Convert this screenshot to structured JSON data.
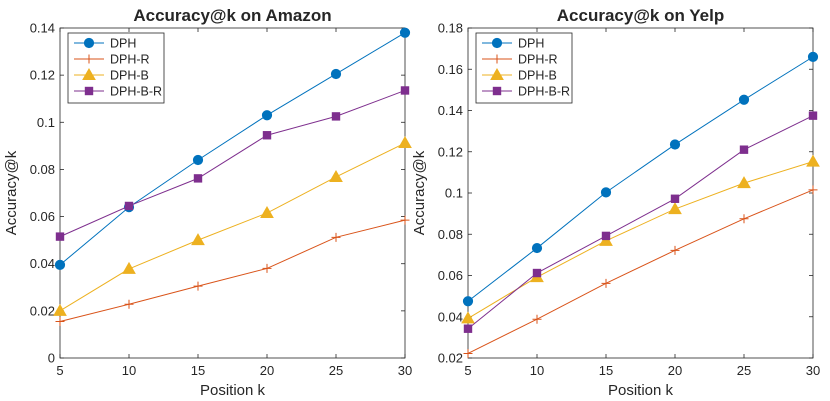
{
  "chart_data": [
    {
      "type": "line",
      "title": "Accuracy@k on Amazon",
      "xlabel": "Position k",
      "ylabel": "Accuracy@k",
      "x": [
        5,
        10,
        15,
        20,
        25,
        30
      ],
      "xlim": [
        5,
        30
      ],
      "ylim": [
        0,
        0.14
      ],
      "xticks": [
        5,
        10,
        15,
        20,
        25,
        30
      ],
      "xtick_labels": [
        "5",
        "10",
        "15",
        "20",
        "25",
        "30"
      ],
      "yticks": [
        0,
        0.02,
        0.04,
        0.06,
        0.08,
        0.1,
        0.12,
        0.14
      ],
      "ytick_labels": [
        "0",
        "0.02",
        "0.04",
        "0.06",
        "0.08",
        "0.1",
        "0.12",
        "0.14"
      ],
      "grid": false,
      "legend_position": "top-left",
      "series": [
        {
          "name": "DPH",
          "color": "#0072BD",
          "marker": "circle",
          "values": [
            0.0395,
            0.064,
            0.084,
            0.103,
            0.1205,
            0.138
          ]
        },
        {
          "name": "DPH-R",
          "color": "#D95319",
          "marker": "plus",
          "values": [
            0.0155,
            0.0228,
            0.0305,
            0.038,
            0.0512,
            0.0585
          ]
        },
        {
          "name": "DPH-B",
          "color": "#EDB120",
          "marker": "triangle",
          "values": [
            0.02,
            0.0378,
            0.05,
            0.0615,
            0.0768,
            0.0912
          ]
        },
        {
          "name": "DPH-B-R",
          "color": "#7E2F8E",
          "marker": "square",
          "values": [
            0.0515,
            0.0645,
            0.0762,
            0.0945,
            0.1025,
            0.1135
          ]
        }
      ]
    },
    {
      "type": "line",
      "title": "Accuracy@k on Yelp",
      "xlabel": "Position k",
      "ylabel": "Accuracy@k",
      "x": [
        5,
        10,
        15,
        20,
        25,
        30
      ],
      "xlim": [
        5,
        30
      ],
      "ylim": [
        0.02,
        0.18
      ],
      "xticks": [
        5,
        10,
        15,
        20,
        25,
        30
      ],
      "xtick_labels": [
        "5",
        "10",
        "15",
        "20",
        "25",
        "30"
      ],
      "yticks": [
        0.02,
        0.04,
        0.06,
        0.08,
        0.1,
        0.12,
        0.14,
        0.16,
        0.18
      ],
      "ytick_labels": [
        "0.02",
        "0.04",
        "0.06",
        "0.08",
        "0.1",
        "0.12",
        "0.14",
        "0.16",
        "0.18"
      ],
      "grid": false,
      "legend_position": "top-left",
      "series": [
        {
          "name": "DPH",
          "color": "#0072BD",
          "marker": "circle",
          "values": [
            0.0475,
            0.0733,
            0.1003,
            0.1235,
            0.1452,
            0.166
          ]
        },
        {
          "name": "DPH-R",
          "color": "#D95319",
          "marker": "plus",
          "values": [
            0.0222,
            0.0388,
            0.0562,
            0.0722,
            0.0875,
            0.1015
          ]
        },
        {
          "name": "DPH-B",
          "color": "#EDB120",
          "marker": "triangle",
          "values": [
            0.0392,
            0.0592,
            0.0768,
            0.0922,
            0.1048,
            0.1152
          ]
        },
        {
          "name": "DPH-B-R",
          "color": "#7E2F8E",
          "marker": "square",
          "values": [
            0.0342,
            0.0612,
            0.0792,
            0.0972,
            0.121,
            0.1375
          ]
        }
      ]
    }
  ]
}
